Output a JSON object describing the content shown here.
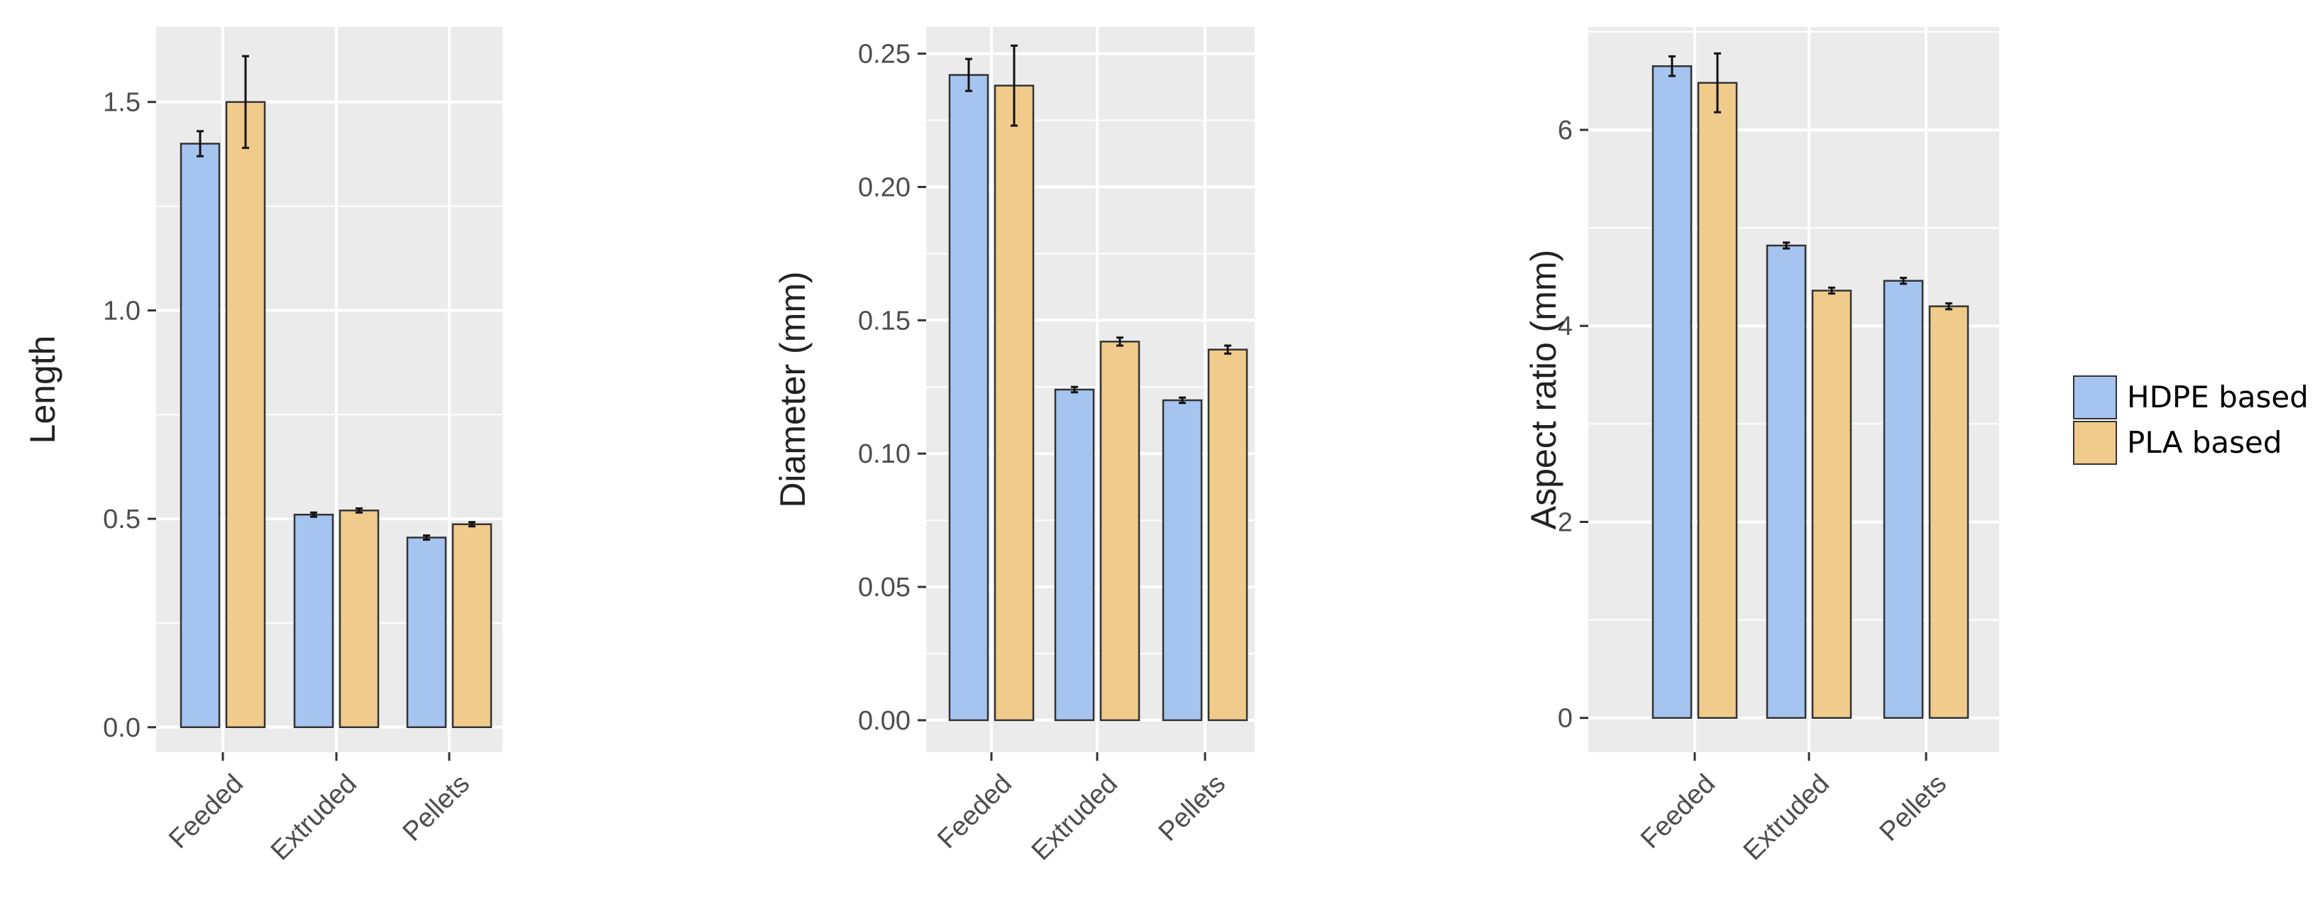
{
  "chart_data": [
    {
      "type": "bar",
      "ylabel": "Length",
      "categories": [
        "Feeded",
        "Extruded",
        "Pellets"
      ],
      "ylim": [
        -0.06,
        1.68
      ],
      "yticks": [
        "0.0",
        "0.5",
        "1.0",
        "1.5"
      ],
      "yticks_values": [
        0,
        0.5,
        1.0,
        1.5
      ],
      "series": [
        {
          "name": "HDPE based",
          "values": [
            1.4,
            0.51,
            0.455
          ],
          "errors": [
            0.03,
            0.005,
            0.005
          ]
        },
        {
          "name": "PLA based",
          "values": [
            1.5,
            0.52,
            0.487
          ],
          "errors": [
            0.11,
            0.005,
            0.005
          ]
        }
      ]
    },
    {
      "type": "bar",
      "ylabel": "Diameter (mm)",
      "categories": [
        "Feeded",
        "Extruded",
        "Pellets"
      ],
      "ylim": [
        -0.012,
        0.26
      ],
      "yticks": [
        "0.00",
        "0.05",
        "0.10",
        "0.15",
        "0.20",
        "0.25"
      ],
      "yticks_values": [
        0,
        0.05,
        0.1,
        0.15,
        0.2,
        0.25
      ],
      "series": [
        {
          "name": "HDPE based",
          "values": [
            0.242,
            0.124,
            0.12
          ],
          "errors": [
            0.006,
            0.001,
            0.001
          ]
        },
        {
          "name": "PLA based",
          "values": [
            0.238,
            0.142,
            0.139
          ],
          "errors": [
            0.015,
            0.0015,
            0.0015
          ]
        }
      ]
    },
    {
      "type": "bar",
      "ylabel": "Aspect  ratio (mm)",
      "categories": [
        "Feeded",
        "Extruded",
        "Pellets"
      ],
      "ylim": [
        -0.35,
        7.05
      ],
      "yticks": [
        "0",
        "2",
        "4",
        "6"
      ],
      "yticks_values": [
        0,
        2,
        4,
        6
      ],
      "series": [
        {
          "name": "HDPE based",
          "values": [
            6.65,
            4.82,
            4.46
          ],
          "errors": [
            0.1,
            0.03,
            0.03
          ]
        },
        {
          "name": "PLA based",
          "values": [
            6.48,
            4.36,
            4.2
          ],
          "errors": [
            0.3,
            0.03,
            0.03
          ]
        }
      ]
    }
  ],
  "legend": {
    "placement": "right",
    "items": [
      {
        "label": "HDPE based",
        "color": "#a6c4f0"
      },
      {
        "label": "PLA based",
        "color": "#f0cb8c"
      }
    ]
  },
  "colors": {
    "panel_bg": "#ebebeb",
    "grid": "#ffffff",
    "bar_stroke": "#333333",
    "error_bar": "#111111"
  }
}
